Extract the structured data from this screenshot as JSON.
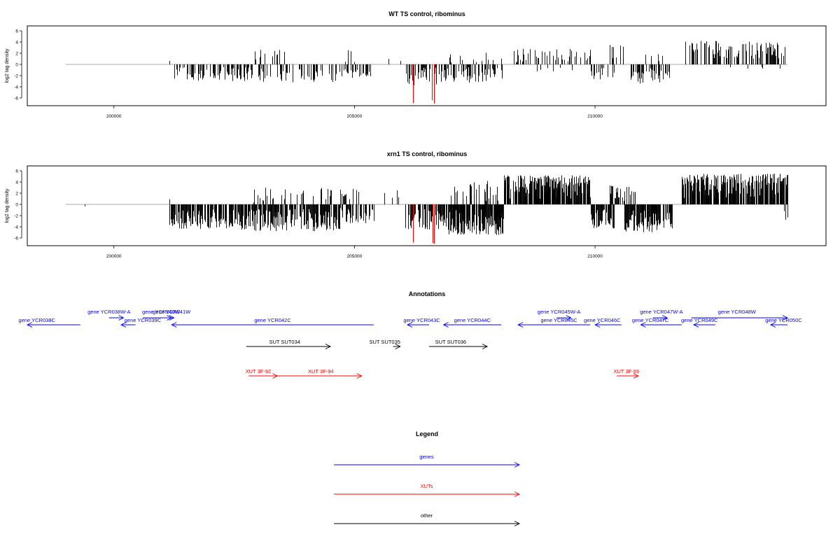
{
  "chart_data": [
    {
      "type": "bar",
      "title": "WT TS control, ribominus",
      "xlabel": "",
      "ylabel": "log2 tag density",
      "xlim": [
        198200,
        214800
      ],
      "ylim": [
        -7,
        6.5
      ],
      "xticks": [
        200000,
        205000,
        210000
      ],
      "yticks": [
        6,
        4,
        2,
        0,
        -2,
        -4,
        -6
      ],
      "baseline_segment": [
        199000,
        214000
      ],
      "grid": false,
      "bar_color": "#000000",
      "highlight_color": "#ff0000",
      "regions": [
        {
          "start": 201150,
          "end": 201160,
          "lo": 0,
          "hi": 2.1,
          "n": 1,
          "seed": 1
        },
        {
          "start": 201200,
          "end": 202800,
          "lo": -3.0,
          "hi": -0.5,
          "n": 90,
          "seed": 2
        },
        {
          "start": 202800,
          "end": 203600,
          "lo": 0.3,
          "hi": 2.6,
          "n": 14,
          "seed": 3
        },
        {
          "start": 202800,
          "end": 204800,
          "lo": -3.2,
          "hi": -0.6,
          "n": 70,
          "seed": 4
        },
        {
          "start": 204800,
          "end": 205000,
          "lo": 0.3,
          "hi": 3.0,
          "n": 5,
          "seed": 5
        },
        {
          "start": 204800,
          "end": 205350,
          "lo": -2.5,
          "hi": -0.8,
          "n": 22,
          "seed": 6
        },
        {
          "start": 205700,
          "end": 205720,
          "lo": 0.3,
          "hi": 1.9,
          "n": 1,
          "seed": 7
        },
        {
          "start": 205950,
          "end": 205970,
          "lo": 0.3,
          "hi": 1.0,
          "n": 1,
          "seed": 8
        },
        {
          "start": 206050,
          "end": 206900,
          "lo": -3.8,
          "hi": -0.5,
          "n": 40,
          "seed": 9
        },
        {
          "start": 206900,
          "end": 208100,
          "lo": -3.5,
          "hi": -0.5,
          "n": 55,
          "seed": 10
        },
        {
          "start": 206900,
          "end": 208100,
          "lo": 0.3,
          "hi": 2.2,
          "n": 12,
          "seed": 11
        },
        {
          "start": 208200,
          "end": 209900,
          "lo": 0.3,
          "hi": 2.8,
          "n": 45,
          "seed": 12
        },
        {
          "start": 208600,
          "end": 209600,
          "lo": -1.3,
          "hi": -0.3,
          "n": 8,
          "seed": 13
        },
        {
          "start": 209900,
          "end": 210400,
          "lo": -3.0,
          "hi": -0.6,
          "n": 14,
          "seed": 14
        },
        {
          "start": 210300,
          "end": 210800,
          "lo": 0.3,
          "hi": 3.5,
          "n": 8,
          "seed": 15
        },
        {
          "start": 210700,
          "end": 211600,
          "lo": -3.8,
          "hi": -0.5,
          "n": 45,
          "seed": 16
        },
        {
          "start": 210800,
          "end": 211400,
          "lo": 0.3,
          "hi": 2.0,
          "n": 6,
          "seed": 17
        },
        {
          "start": 211850,
          "end": 214000,
          "lo": 0.8,
          "hi": 4.2,
          "n": 95,
          "seed": 18
        },
        {
          "start": 212500,
          "end": 214000,
          "lo": -1.3,
          "hi": -0.3,
          "n": 5,
          "seed": 19
        }
      ],
      "highlights": [
        {
          "x": 206220,
          "y": -6.9
        },
        {
          "x": 206610,
          "y": -6.4
        },
        {
          "x": 206650,
          "y": -7.0
        }
      ]
    },
    {
      "type": "bar",
      "title": "xrn1 TS control, ribominus",
      "xlabel": "",
      "ylabel": "log2 tag density",
      "xlim": [
        198200,
        214800
      ],
      "ylim": [
        -7,
        6.5
      ],
      "xticks": [
        200000,
        205000,
        210000
      ],
      "yticks": [
        6,
        4,
        2,
        0,
        -2,
        -4,
        -6
      ],
      "baseline_segment": [
        199000,
        214000
      ],
      "grid": false,
      "bar_color": "#000000",
      "highlight_color": "#ff0000",
      "regions": [
        {
          "start": 199400,
          "end": 199410,
          "lo": -0.6,
          "hi": -0.3,
          "n": 1,
          "seed": 31
        },
        {
          "start": 201150,
          "end": 201160,
          "lo": 0,
          "hi": 1.0,
          "n": 1,
          "seed": 32
        },
        {
          "start": 201150,
          "end": 202800,
          "lo": -4.5,
          "hi": -0.8,
          "n": 180,
          "seed": 33
        },
        {
          "start": 202800,
          "end": 204700,
          "lo": -4.8,
          "hi": -0.8,
          "n": 190,
          "seed": 34
        },
        {
          "start": 202900,
          "end": 204600,
          "lo": 0.3,
          "hi": 3.0,
          "n": 30,
          "seed": 35
        },
        {
          "start": 204700,
          "end": 205100,
          "lo": 0.5,
          "hi": 2.8,
          "n": 12,
          "seed": 36
        },
        {
          "start": 204700,
          "end": 205400,
          "lo": -3.5,
          "hi": -0.6,
          "n": 40,
          "seed": 37
        },
        {
          "start": 205600,
          "end": 205920,
          "lo": 0.3,
          "hi": 2.6,
          "n": 4,
          "seed": 38
        },
        {
          "start": 206050,
          "end": 206950,
          "lo": -4.5,
          "hi": -0.6,
          "n": 80,
          "seed": 39
        },
        {
          "start": 206950,
          "end": 208100,
          "lo": -5.5,
          "hi": -0.8,
          "n": 200,
          "seed": 40
        },
        {
          "start": 207000,
          "end": 208000,
          "lo": 0.5,
          "hi": 4.5,
          "n": 30,
          "seed": 41
        },
        {
          "start": 208100,
          "end": 209900,
          "lo": 0.8,
          "hi": 5.2,
          "n": 280,
          "seed": 42
        },
        {
          "start": 209900,
          "end": 210400,
          "lo": -4.5,
          "hi": -0.8,
          "n": 60,
          "seed": 43
        },
        {
          "start": 210300,
          "end": 210900,
          "lo": 0.5,
          "hi": 3.5,
          "n": 30,
          "seed": 44
        },
        {
          "start": 210600,
          "end": 211600,
          "lo": -5.0,
          "hi": -0.8,
          "n": 140,
          "seed": 45
        },
        {
          "start": 211800,
          "end": 214000,
          "lo": 0.8,
          "hi": 5.5,
          "n": 300,
          "seed": 46
        },
        {
          "start": 213900,
          "end": 214000,
          "lo": -3.0,
          "hi": -1.0,
          "n": 3,
          "seed": 47
        }
      ],
      "highlights": [
        {
          "x": 206220,
          "y": -6.8
        },
        {
          "x": 206620,
          "y": -6.9
        },
        {
          "x": 206660,
          "y": -7.0
        }
      ]
    }
  ],
  "annotations": {
    "title": "Annotations",
    "xlim": [
      198200,
      214800
    ],
    "rows": {
      "genes_a": {
        "label_gap": 1
      },
      "genes_b": {
        "label_gap": 1
      }
    },
    "features": [
      {
        "label": "gene YCR038W-A",
        "kind": "gene",
        "start": 199900,
        "end": 200200,
        "strand": "+",
        "row": "a",
        "label_x": 199900
      },
      {
        "label": "gene YCR038C",
        "kind": "gene",
        "start": 198200,
        "end": 199300,
        "strand": "-",
        "row": "b",
        "label_x": 198400
      },
      {
        "label": "gene YCR039C",
        "kind": "gene",
        "start": 200150,
        "end": 200450,
        "strand": "-",
        "row": "b",
        "label_x": 200600
      },
      {
        "label": "gene YCR040W",
        "kind": "gene",
        "start": 200600,
        "end": 201200,
        "strand": "+",
        "row": "a",
        "label_x": 200980
      },
      {
        "label": "gene YCR041W",
        "kind": "gene",
        "start": 200900,
        "end": 201250,
        "strand": "+",
        "row": "a",
        "label_x": 201200
      },
      {
        "label": "gene YCR042C",
        "kind": "gene",
        "start": 201200,
        "end": 205400,
        "strand": "-",
        "row": "b",
        "label_x": 203300
      },
      {
        "label": "gene YCR043C",
        "kind": "gene",
        "start": 206100,
        "end": 206550,
        "strand": "-",
        "row": "b",
        "label_x": 206400
      },
      {
        "label": "gene YCR044C",
        "kind": "gene",
        "start": 206850,
        "end": 208050,
        "strand": "-",
        "row": "b",
        "label_x": 207450
      },
      {
        "label": "gene YCR045W-A",
        "kind": "gene",
        "start": 209200,
        "end": 209500,
        "strand": "+",
        "row": "a",
        "label_x": 209250
      },
      {
        "label": "gene YCR045C",
        "kind": "gene",
        "start": 208400,
        "end": 209900,
        "strand": "-",
        "row": "b",
        "label_x": 209250
      },
      {
        "label": "gene YCR046C",
        "kind": "gene",
        "start": 210000,
        "end": 210550,
        "strand": "-",
        "row": "b",
        "label_x": 210150
      },
      {
        "label": "gene YCR047W-A",
        "kind": "gene",
        "start": 211200,
        "end": 211500,
        "strand": "+",
        "row": "a",
        "label_x": 211380
      },
      {
        "label": "gene YCR047C",
        "kind": "gene",
        "start": 210950,
        "end": 211800,
        "strand": "-",
        "row": "b",
        "label_x": 211150
      },
      {
        "label": "gene YCR048W",
        "kind": "gene",
        "start": 212000,
        "end": 214000,
        "strand": "+",
        "row": "a",
        "label_x": 212950
      },
      {
        "label": "gene YCR049C",
        "kind": "gene",
        "start": 212050,
        "end": 212500,
        "strand": "-",
        "row": "b",
        "label_x": 212170
      },
      {
        "label": "gene YCR050C",
        "kind": "gene",
        "start": 213650,
        "end": 214000,
        "strand": "-",
        "row": "b",
        "label_x": 213920
      },
      {
        "label": "SUT SUT034",
        "kind": "other",
        "start": 202750,
        "end": 204500,
        "strand": "+",
        "row": "c",
        "label_x": 203550
      },
      {
        "label": "SUT SUT035",
        "kind": "other",
        "start": 205800,
        "end": 205950,
        "strand": "+",
        "row": "c",
        "label_x": 205630
      },
      {
        "label": "SUT SUT036",
        "kind": "other",
        "start": 206550,
        "end": 207760,
        "strand": "+",
        "row": "c",
        "label_x": 207000
      },
      {
        "label": "XUT 3F-92",
        "kind": "xut",
        "start": 202800,
        "end": 203400,
        "strand": "+",
        "row": "d",
        "label_x": 203000
      },
      {
        "label": "XUT 3F-94",
        "kind": "xut",
        "start": 203400,
        "end": 205150,
        "strand": "+",
        "row": "d",
        "label_x": 204300
      },
      {
        "label": "XUT 3F-99",
        "kind": "xut",
        "start": 210450,
        "end": 210900,
        "strand": "+",
        "row": "d",
        "label_x": 210650
      }
    ]
  },
  "legend": {
    "title": "Legend",
    "items": [
      {
        "label": "genes",
        "color": "#0000ff"
      },
      {
        "label": "XUTs",
        "color": "#ff0000"
      },
      {
        "label": "other",
        "color": "#000000"
      }
    ]
  },
  "colors": {
    "gene": "#0000ff",
    "xut": "#ff0000",
    "other": "#000000",
    "baseline": "#aaaaaa"
  }
}
